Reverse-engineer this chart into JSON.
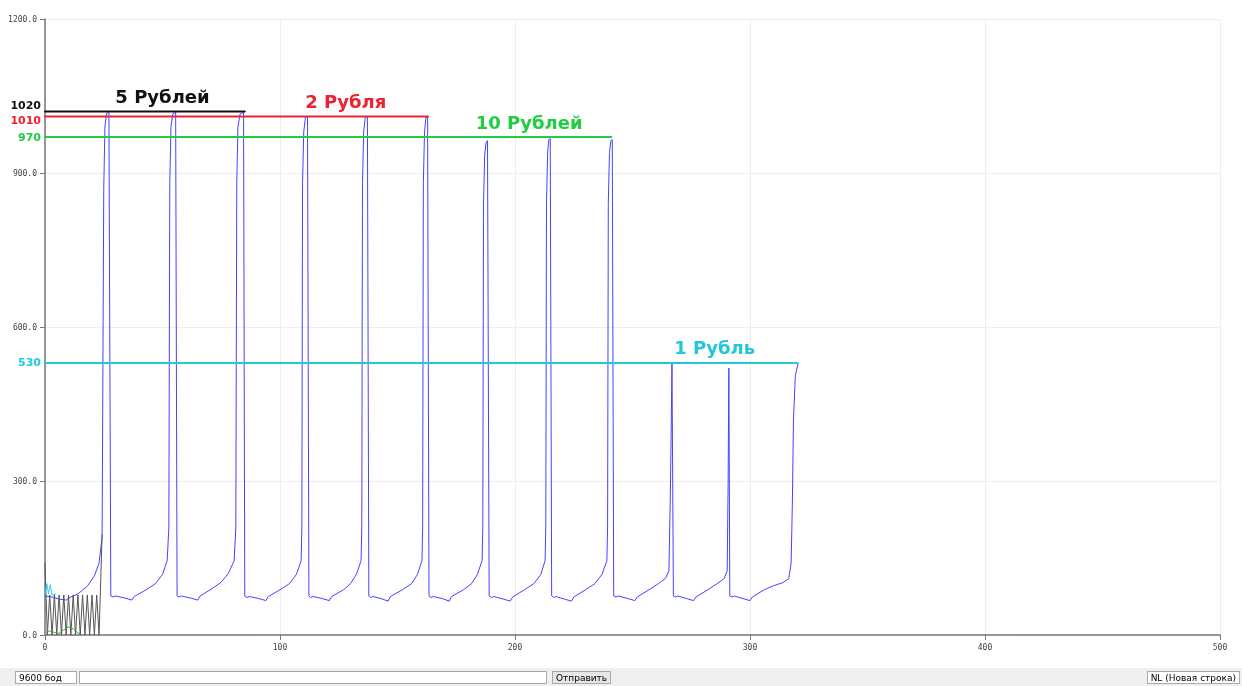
{
  "chart_data": {
    "type": "line",
    "xlim": [
      0,
      500
    ],
    "xticks": [
      0,
      100,
      200,
      300,
      400,
      500
    ],
    "ylim": [
      0,
      1200
    ],
    "yticks": [
      {
        "value": 0,
        "label": "0.0"
      },
      {
        "value": 300,
        "label": "300.0"
      },
      {
        "value": 600,
        "label": "600.0"
      },
      {
        "value": 900,
        "label": "900.0"
      },
      {
        "value": 1200,
        "label": "1200.0"
      }
    ],
    "grid": true,
    "marker": "none",
    "annotations": [
      "9600 бод",
      "Отправить",
      "NL (Новая строка)"
    ],
    "series": [
      {
        "color": "#4444ff",
        "x": [
          0,
          3,
          6,
          9,
          10,
          14,
          18,
          21,
          23,
          24.3,
          25,
          25.5,
          26.2,
          27.2,
          28,
          29,
          30,
          34,
          37,
          38,
          43,
          47,
          50,
          52,
          52.7,
          53.1,
          53.6,
          54.4,
          55.6,
          56.2,
          57,
          58,
          62,
          65,
          66,
          71,
          75,
          78,
          80.5,
          81.2,
          81.6,
          82.1,
          83,
          84.5,
          85,
          86,
          87,
          91,
          94,
          95,
          100,
          104,
          107,
          109,
          109.3,
          109.6,
          110.1,
          110.8,
          111.7,
          112.3,
          113,
          114,
          118,
          121,
          122,
          127,
          130,
          132.5,
          134.5,
          134.8,
          135.1,
          135.6,
          136.3,
          137.2,
          137.8,
          138.6,
          139.6,
          143,
          146,
          147,
          152,
          156,
          158.5,
          160.4,
          160.7,
          161,
          161.5,
          162.1,
          162.8,
          163.4,
          164.2,
          165.2,
          169,
          172,
          173,
          178,
          181.5,
          184,
          186,
          186.3,
          186.6,
          187.1,
          187.7,
          188.3,
          189,
          190,
          191,
          195,
          198,
          199,
          204,
          208,
          211,
          212.8,
          213.1,
          213.4,
          213.9,
          214.4,
          215,
          215.6,
          216.5,
          217.5,
          221,
          224,
          225,
          230,
          234,
          237,
          239.1,
          239.4,
          239.7,
          240.2,
          240.8,
          241.4,
          242,
          243,
          244,
          248,
          251,
          252,
          257,
          261,
          264,
          265.5,
          266.2,
          266.8,
          267.4,
          268.3,
          269.3,
          273,
          276,
          277,
          282,
          286,
          289,
          290.3,
          290.7,
          291,
          291.4,
          292.3,
          293.3,
          297,
          300,
          301,
          306,
          310,
          314,
          316.5,
          317.5,
          318,
          318.5,
          319.3,
          320.5
        ],
        "values": [
          76,
          74,
          70,
          68,
          72,
          80,
          95,
          115,
          140,
          190,
          870,
          990,
          1016,
          1018,
          76,
          74,
          76,
          72,
          68,
          75,
          88,
          100,
          118,
          145,
          210,
          880,
          990,
          1015,
          1018,
          76,
          74,
          76,
          72,
          68,
          76,
          90,
          103,
          120,
          145,
          210,
          880,
          990,
          1015,
          1018,
          76,
          73,
          75,
          71,
          67,
          75,
          88,
          100,
          118,
          145,
          210,
          880,
          980,
          1008,
          1010,
          76,
          73,
          75,
          71,
          67,
          75,
          88,
          100,
          118,
          145,
          210,
          880,
          980,
          1008,
          1010,
          76,
          73,
          75,
          71,
          66,
          75,
          88,
          100,
          118,
          145,
          210,
          880,
          980,
          1008,
          1010,
          76,
          73,
          75,
          71,
          66,
          75,
          88,
          100,
          118,
          145,
          210,
          840,
          935,
          960,
          963,
          76,
          73,
          75,
          70,
          66,
          74,
          88,
          100,
          118,
          145,
          210,
          840,
          940,
          965,
          967,
          76,
          73,
          75,
          70,
          66,
          74,
          88,
          100,
          118,
          145,
          210,
          840,
          940,
          963,
          965,
          76,
          74,
          76,
          71,
          67,
          74,
          88,
          100,
          110,
          125,
          300,
          530,
          76,
          74,
          76,
          71,
          67,
          74,
          88,
          100,
          110,
          125,
          300,
          520,
          76,
          74,
          76,
          71,
          67,
          74,
          88,
          96,
          102,
          110,
          140,
          250,
          420,
          505,
          530
        ]
      },
      {
        "color": "#555555",
        "x": [
          0,
          1,
          2,
          3,
          4,
          5,
          6,
          7,
          8,
          9,
          10,
          11,
          12,
          13,
          14,
          15,
          16,
          17,
          18,
          19,
          20,
          21,
          22,
          23,
          24.3
        ],
        "values": [
          140,
          0,
          78,
          0,
          78,
          0,
          78,
          0,
          78,
          0,
          78,
          0,
          78,
          0,
          78,
          0,
          78,
          0,
          78,
          0,
          78,
          0,
          78,
          0,
          195
        ]
      },
      {
        "color": "#33ccff",
        "x": [
          0,
          0.8,
          1.5,
          2.2,
          3,
          4.5
        ],
        "values": [
          78,
          100,
          80,
          98,
          78,
          80
        ]
      },
      {
        "color": "#33aa33",
        "x": [
          0,
          2,
          4,
          6,
          8,
          10,
          12,
          14,
          15
        ],
        "values": [
          5,
          8,
          5,
          3,
          10,
          16,
          12,
          4,
          2
        ]
      },
      {
        "name": "5 Рублей",
        "color": "#111111",
        "x": [
          0,
          85
        ],
        "values": [
          1020,
          1020
        ],
        "value_labels": [
          "1020",
          null
        ]
      },
      {
        "name": "2 Рубля",
        "color": "#ee2233",
        "x": [
          0,
          163
        ],
        "values": [
          1010,
          1010
        ],
        "value_labels": [
          "1010",
          null
        ]
      },
      {
        "name": "10 Рублей",
        "color": "#22cc44",
        "x": [
          0,
          241
        ],
        "values": [
          970,
          970
        ],
        "value_labels": [
          "970",
          null
        ]
      },
      {
        "name": "1 Рубль",
        "color": "#22c8d8",
        "x": [
          0,
          320
        ],
        "values": [
          530,
          530
        ],
        "value_labels": [
          "530",
          null
        ]
      }
    ]
  }
}
